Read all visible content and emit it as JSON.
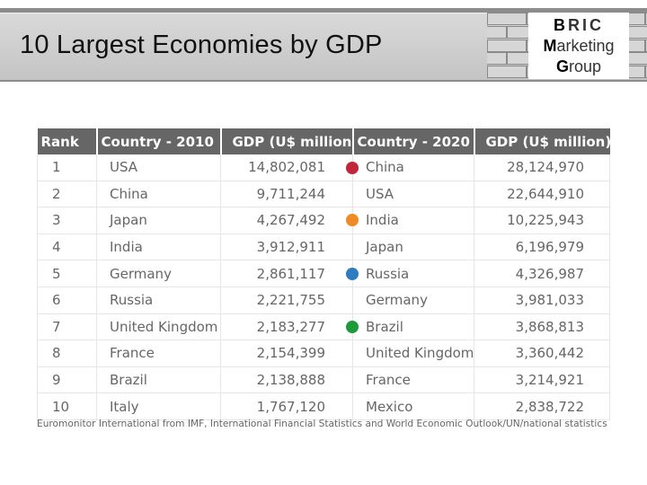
{
  "title": "10 Largest Economies by GDP",
  "logo": {
    "line1_lead": "B",
    "line1_rest": "RIC",
    "line2_lead": "M",
    "line2_rest": "arketing",
    "line3_lead": "G",
    "line3_rest": "roup"
  },
  "table": {
    "headers": [
      "Rank",
      "Country - 2010",
      "GDP (U$ million)",
      "Country - 2020",
      "GDP (U$ million)"
    ],
    "rows": [
      {
        "rank": "1",
        "country_2010": "USA",
        "gdp_2010": "14,802,081",
        "country_2020": "China",
        "gdp_2020": "28,124,970"
      },
      {
        "rank": "2",
        "country_2010": "China",
        "gdp_2010": "9,711,244",
        "country_2020": "USA",
        "gdp_2020": "22,644,910"
      },
      {
        "rank": "3",
        "country_2010": "Japan",
        "gdp_2010": "4,267,492",
        "country_2020": "India",
        "gdp_2020": "10,225,943"
      },
      {
        "rank": "4",
        "country_2010": "India",
        "gdp_2010": "3,912,911",
        "country_2020": "Japan",
        "gdp_2020": "6,196,979"
      },
      {
        "rank": "5",
        "country_2010": "Germany",
        "gdp_2010": "2,861,117",
        "country_2020": "Russia",
        "gdp_2020": "4,326,987"
      },
      {
        "rank": "6",
        "country_2010": "Russia",
        "gdp_2010": "2,221,755",
        "country_2020": "Germany",
        "gdp_2020": "3,981,033"
      },
      {
        "rank": "7",
        "country_2010": "United Kingdom",
        "gdp_2010": "2,183,277",
        "country_2020": "Brazil",
        "gdp_2020": "3,868,813"
      },
      {
        "rank": "8",
        "country_2010": "France",
        "gdp_2010": "2,154,399",
        "country_2020": "United Kingdom",
        "gdp_2020": "3,360,442"
      },
      {
        "rank": "9",
        "country_2010": "Brazil",
        "gdp_2010": "2,138,888",
        "country_2020": "France",
        "gdp_2020": "3,214,921"
      },
      {
        "rank": "10",
        "country_2010": "Italy",
        "gdp_2010": "1,767,120",
        "country_2020": "Mexico",
        "gdp_2020": "2,838,722"
      }
    ]
  },
  "markers": [
    {
      "country": "China",
      "color": "#c0253a"
    },
    {
      "country": "India",
      "color": "#f08a24"
    },
    {
      "country": "Russia",
      "color": "#2f7cc0"
    },
    {
      "country": "Brazil",
      "color": "#1f9a3a"
    }
  ],
  "source": "Euromonitor International from IMF, International Financial Statistics and World Economic Outlook/UN/national statistics"
}
